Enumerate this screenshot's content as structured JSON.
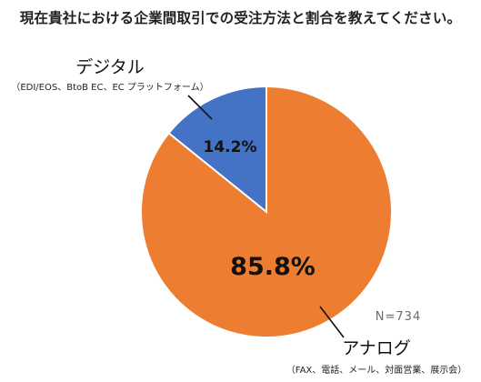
{
  "chart_data": {
    "type": "pie",
    "title": "現在貴社における企業間取引での受注方法と割合を教えてください。",
    "slices": [
      {
        "label": "デジタル",
        "sublabel": "（EDI/EOS、BtoB EC、EC プラットフォーム）",
        "value": 14.2,
        "value_label": "14.2%",
        "color": "#4472C4"
      },
      {
        "label": "アナログ",
        "sublabel": "（FAX、電話、メール、対面営業、展示会）",
        "value": 85.8,
        "value_label": "85.8%",
        "color": "#ED7D31"
      }
    ],
    "note": "N=734",
    "start_angle_deg": 0,
    "direction": "counterclockwise"
  }
}
